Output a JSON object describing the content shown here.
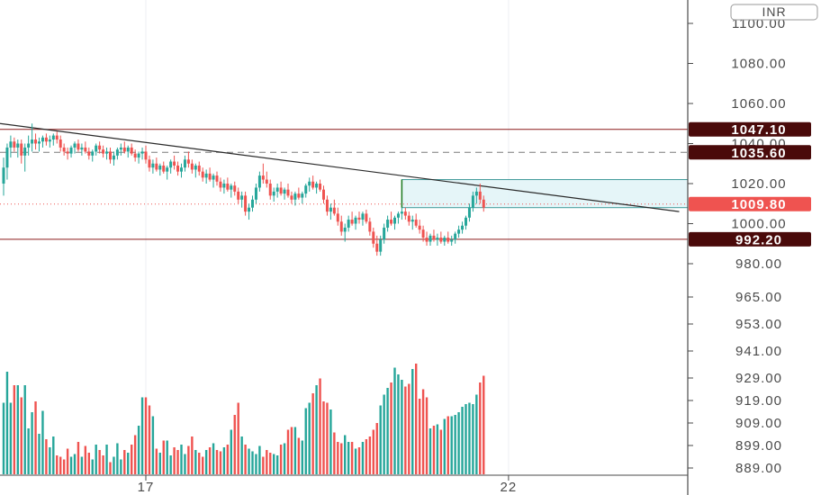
{
  "chart_data": {
    "type": "candlestick",
    "currency": "INR",
    "colors": {
      "up": "#26a69a",
      "down": "#ef5350",
      "level_line": "#8b1a1a",
      "level_tag": "#4a0a0a",
      "current_tag": "#ef5350",
      "trendline": "#2a2a2a",
      "range_fill": "#e3f4f8",
      "range_border": "#2a8f8f",
      "range_left": "#1f7a1f"
    },
    "x_tick_labels": [
      {
        "label": "17",
        "index": 40
      },
      {
        "label": "22",
        "index": 142
      }
    ],
    "price_axis_labels": [
      "1100.00",
      "1080.00",
      "1060.00",
      "1040.00",
      "1020.00",
      "1000.00",
      "980.00",
      "965.00",
      "953.00",
      "941.00",
      "929.00",
      "919.00",
      "909.00",
      "899.00",
      "889.00"
    ],
    "levels": [
      {
        "price": 1047.1,
        "label": "1047.10",
        "style": "solid"
      },
      {
        "price": 1035.6,
        "label": "1035.60",
        "style": "dashed"
      },
      {
        "price": 992.2,
        "label": "992.20",
        "style": "solid"
      }
    ],
    "current_price": {
      "price": 1009.8,
      "label": "1009.80"
    },
    "trendline": [
      {
        "index": 0,
        "price": 1050
      },
      {
        "index": 190,
        "price": 1006
      }
    ],
    "range_box": {
      "start_index": 112,
      "end_index": 190,
      "top": 1022,
      "bottom": 1008
    },
    "ylim": [
      880,
      1110
    ],
    "candles": [
      [
        1020,
        1033,
        1014,
        1028
      ],
      [
        1028,
        1040,
        1022,
        1038
      ],
      [
        1038,
        1044,
        1033,
        1041
      ],
      [
        1041,
        1043,
        1036,
        1038
      ],
      [
        1038,
        1042,
        1033,
        1040
      ],
      [
        1040,
        1042,
        1030,
        1034
      ],
      [
        1034,
        1040,
        1026,
        1038
      ],
      [
        1038,
        1044,
        1034,
        1040
      ],
      [
        1040,
        1050,
        1036,
        1042
      ],
      [
        1042,
        1045,
        1037,
        1040
      ],
      [
        1040,
        1043,
        1036,
        1041
      ],
      [
        1041,
        1044,
        1038,
        1043
      ],
      [
        1043,
        1045,
        1039,
        1041
      ],
      [
        1041,
        1044,
        1038,
        1042
      ],
      [
        1042,
        1045,
        1039,
        1044
      ],
      [
        1044,
        1046,
        1040,
        1042
      ],
      [
        1042,
        1044,
        1036,
        1038
      ],
      [
        1038,
        1040,
        1034,
        1036
      ],
      [
        1036,
        1038,
        1032,
        1035
      ],
      [
        1035,
        1039,
        1033,
        1038
      ],
      [
        1038,
        1041,
        1035,
        1040
      ],
      [
        1040,
        1042,
        1036,
        1037
      ],
      [
        1037,
        1040,
        1034,
        1038
      ],
      [
        1038,
        1041,
        1035,
        1036
      ],
      [
        1036,
        1038,
        1032,
        1034
      ],
      [
        1034,
        1037,
        1031,
        1036
      ],
      [
        1036,
        1040,
        1034,
        1039
      ],
      [
        1039,
        1041,
        1035,
        1037
      ],
      [
        1037,
        1039,
        1033,
        1035
      ],
      [
        1035,
        1038,
        1032,
        1036
      ],
      [
        1036,
        1038,
        1030,
        1032
      ],
      [
        1032,
        1036,
        1029,
        1034
      ],
      [
        1034,
        1038,
        1032,
        1037
      ],
      [
        1037,
        1040,
        1034,
        1038
      ],
      [
        1038,
        1041,
        1035,
        1036
      ],
      [
        1036,
        1039,
        1033,
        1038
      ],
      [
        1038,
        1040,
        1034,
        1035
      ],
      [
        1035,
        1037,
        1031,
        1033
      ],
      [
        1033,
        1036,
        1030,
        1035
      ],
      [
        1035,
        1038,
        1032,
        1036
      ],
      [
        1036,
        1039,
        1030,
        1032
      ],
      [
        1032,
        1034,
        1026,
        1028
      ],
      [
        1028,
        1032,
        1025,
        1030
      ],
      [
        1030,
        1033,
        1026,
        1027
      ],
      [
        1027,
        1030,
        1024,
        1029
      ],
      [
        1029,
        1031,
        1025,
        1026
      ],
      [
        1026,
        1029,
        1022,
        1028
      ],
      [
        1028,
        1032,
        1025,
        1031
      ],
      [
        1031,
        1034,
        1027,
        1029
      ],
      [
        1029,
        1031,
        1024,
        1026
      ],
      [
        1026,
        1030,
        1023,
        1028
      ],
      [
        1028,
        1034,
        1026,
        1032
      ],
      [
        1032,
        1036,
        1028,
        1030
      ],
      [
        1030,
        1032,
        1025,
        1027
      ],
      [
        1027,
        1030,
        1023,
        1029
      ],
      [
        1029,
        1031,
        1024,
        1026
      ],
      [
        1026,
        1028,
        1021,
        1023
      ],
      [
        1023,
        1027,
        1020,
        1025
      ],
      [
        1025,
        1028,
        1021,
        1022
      ],
      [
        1022,
        1025,
        1018,
        1024
      ],
      [
        1024,
        1026,
        1019,
        1021
      ],
      [
        1021,
        1023,
        1016,
        1018
      ],
      [
        1018,
        1022,
        1015,
        1020
      ],
      [
        1020,
        1023,
        1016,
        1017
      ],
      [
        1017,
        1020,
        1013,
        1019
      ],
      [
        1019,
        1021,
        1014,
        1016
      ],
      [
        1016,
        1018,
        1010,
        1012
      ],
      [
        1012,
        1016,
        1008,
        1014
      ],
      [
        1014,
        1016,
        1004,
        1006
      ],
      [
        1006,
        1010,
        1002,
        1008
      ],
      [
        1008,
        1014,
        1006,
        1012
      ],
      [
        1012,
        1020,
        1010,
        1018
      ],
      [
        1018,
        1026,
        1016,
        1024
      ],
      [
        1024,
        1030,
        1020,
        1022
      ],
      [
        1022,
        1026,
        1018,
        1020
      ],
      [
        1020,
        1022,
        1012,
        1014
      ],
      [
        1014,
        1018,
        1011,
        1016
      ],
      [
        1016,
        1020,
        1013,
        1018
      ],
      [
        1018,
        1021,
        1014,
        1015
      ],
      [
        1015,
        1018,
        1012,
        1017
      ],
      [
        1017,
        1020,
        1013,
        1014
      ],
      [
        1014,
        1016,
        1010,
        1012
      ],
      [
        1012,
        1016,
        1009,
        1015
      ],
      [
        1015,
        1018,
        1012,
        1013
      ],
      [
        1013,
        1016,
        1010,
        1015
      ],
      [
        1015,
        1020,
        1013,
        1019
      ],
      [
        1019,
        1023,
        1016,
        1021
      ],
      [
        1021,
        1024,
        1017,
        1018
      ],
      [
        1018,
        1021,
        1015,
        1020
      ],
      [
        1020,
        1022,
        1016,
        1017
      ],
      [
        1017,
        1019,
        1010,
        1012
      ],
      [
        1012,
        1014,
        1004,
        1006
      ],
      [
        1006,
        1010,
        1002,
        1008
      ],
      [
        1008,
        1012,
        1004,
        1005
      ],
      [
        1005,
        1008,
        999,
        1001
      ],
      [
        1001,
        1004,
        994,
        996
      ],
      [
        996,
        1000,
        991,
        998
      ],
      [
        998,
        1004,
        996,
        1002
      ],
      [
        1002,
        1006,
        999,
        1000
      ],
      [
        1000,
        1004,
        997,
        1003
      ],
      [
        1003,
        1006,
        1000,
        1002
      ],
      [
        1002,
        1006,
        999,
        1005
      ],
      [
        1005,
        1007,
        1000,
        1001
      ],
      [
        1001,
        1003,
        994,
        996
      ],
      [
        996,
        998,
        988,
        990
      ],
      [
        990,
        994,
        984,
        986
      ],
      [
        986,
        994,
        984,
        992
      ],
      [
        992,
        1000,
        990,
        998
      ],
      [
        998,
        1004,
        996,
        1002
      ],
      [
        1002,
        1006,
        999,
        1000
      ],
      [
        1000,
        1004,
        997,
        1003
      ],
      [
        1003,
        1006,
        1000,
        1005
      ],
      [
        1005,
        1008,
        1002,
        1006
      ],
      [
        1006,
        1008,
        1002,
        1004
      ],
      [
        1004,
        1006,
        999,
        1001
      ],
      [
        1001,
        1004,
        997,
        1002
      ],
      [
        1002,
        1005,
        998,
        999
      ],
      [
        999,
        1002,
        995,
        997
      ],
      [
        997,
        999,
        991,
        993
      ],
      [
        993,
        996,
        989,
        991
      ],
      [
        991,
        995,
        989,
        994
      ],
      [
        994,
        997,
        991,
        992
      ],
      [
        992,
        995,
        989,
        993
      ],
      [
        993,
        996,
        990,
        991
      ],
      [
        991,
        994,
        989,
        993
      ],
      [
        993,
        996,
        990,
        991
      ],
      [
        991,
        994,
        989,
        992
      ],
      [
        992,
        996,
        990,
        995
      ],
      [
        995,
        999,
        993,
        997
      ],
      [
        997,
        1001,
        995,
        999
      ],
      [
        999,
        1004,
        997,
        1003
      ],
      [
        1003,
        1010,
        1001,
        1008
      ],
      [
        1008,
        1016,
        1006,
        1014
      ],
      [
        1014,
        1018,
        1010,
        1016
      ],
      [
        1016,
        1020,
        1010,
        1012
      ],
      [
        1012,
        1014,
        1006,
        1008
      ]
    ],
    "volumes": [
      53,
      76,
      53,
      66,
      66,
      57,
      66,
      34,
      46,
      54,
      30,
      47,
      26,
      20,
      28,
      14,
      13,
      11,
      19,
      13,
      15,
      24,
      13,
      21,
      16,
      11,
      22,
      18,
      14,
      22,
      9,
      13,
      23,
      11,
      18,
      16,
      22,
      29,
      36,
      57,
      57,
      51,
      43,
      19,
      16,
      25,
      25,
      14,
      20,
      18,
      22,
      15,
      21,
      28,
      18,
      16,
      13,
      18,
      20,
      23,
      18,
      17,
      20,
      22,
      33,
      44,
      53,
      28,
      22,
      19,
      17,
      15,
      21,
      13,
      18,
      16,
      15,
      14,
      22,
      23,
      33,
      35,
      35,
      27,
      25,
      49,
      53,
      60,
      66,
      71,
      54,
      53,
      48,
      31,
      24,
      23,
      29,
      24,
      24,
      19,
      20,
      24,
      26,
      28,
      33,
      38,
      51,
      59,
      64,
      68,
      79,
      74,
      70,
      65,
      67,
      78,
      82,
      56,
      63,
      57,
      34,
      36,
      37,
      33,
      41,
      43,
      43,
      44,
      46,
      50,
      52,
      53,
      52,
      59,
      68,
      73,
      68,
      71,
      76,
      87,
      62,
      56,
      62,
      54
    ]
  }
}
